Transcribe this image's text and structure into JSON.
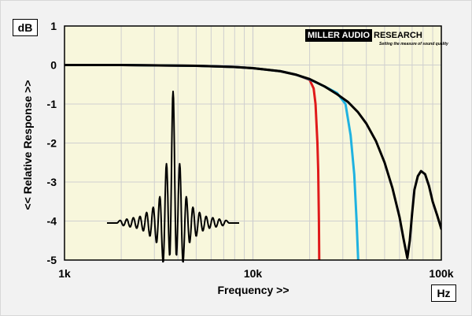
{
  "chart_data": {
    "type": "line",
    "title": "",
    "y_unit": "dB",
    "x_unit": "Hz",
    "xlabel": "Frequency >>",
    "ylabel": "<< Relative Response >>",
    "x_scale": "log",
    "xlim": [
      1000,
      100000
    ],
    "ylim": [
      -5,
      1
    ],
    "grid": true,
    "x_tick_labels": [
      "1k",
      "10k",
      "100k"
    ],
    "y_tick_labels": [
      "1",
      "0",
      "-1",
      "-2",
      "-3",
      "-4",
      "-5"
    ],
    "series": [
      {
        "color": "#e01a1a",
        "x": [
          1000,
          2000,
          5000,
          8000,
          10000,
          14000,
          17000,
          20000,
          21000,
          21500,
          22000,
          22200,
          22400,
          22500
        ],
        "y": [
          0,
          0,
          -0.02,
          -0.05,
          -0.08,
          -0.16,
          -0.25,
          -0.38,
          -0.6,
          -1.0,
          -2.0,
          -2.7,
          -4.0,
          -5.0
        ]
      },
      {
        "color": "#1fb2e0",
        "x": [
          1000,
          2000,
          5000,
          8000,
          10000,
          14000,
          17000,
          20000,
          24000,
          28000,
          31000,
          33000,
          34500,
          35500,
          36200
        ],
        "y": [
          0,
          0,
          -0.02,
          -0.05,
          -0.08,
          -0.16,
          -0.25,
          -0.37,
          -0.55,
          -0.72,
          -1.0,
          -1.8,
          -2.8,
          -4.0,
          -5.0
        ]
      },
      {
        "color": "#000000",
        "x": [
          1000,
          2000,
          5000,
          8000,
          10000,
          14000,
          17000,
          20000,
          24000,
          28000,
          32000,
          36000,
          40000,
          45000,
          50000,
          55000,
          60000,
          63000,
          66000,
          68000,
          70000,
          72000,
          75000,
          78000,
          82000,
          86000,
          90000,
          95000,
          100000
        ],
        "y": [
          0,
          0,
          -0.02,
          -0.05,
          -0.08,
          -0.16,
          -0.25,
          -0.36,
          -0.55,
          -0.75,
          -0.95,
          -1.2,
          -1.5,
          -1.95,
          -2.5,
          -3.15,
          -3.9,
          -4.45,
          -4.95,
          -4.5,
          -3.8,
          -3.2,
          -2.85,
          -2.72,
          -2.8,
          -3.1,
          -3.5,
          -3.85,
          -4.2
        ]
      }
    ],
    "impulse_inset": {
      "color": "#000000",
      "samples": [
        0,
        0,
        0,
        0,
        0.02,
        -0.02,
        0.03,
        -0.03,
        0.04,
        -0.04,
        0.05,
        -0.06,
        0.08,
        -0.1,
        0.12,
        -0.15,
        0.2,
        -0.3,
        0.45,
        -0.25,
        1.0,
        -0.25,
        0.45,
        -0.3,
        0.2,
        -0.15,
        0.12,
        -0.1,
        0.08,
        -0.06,
        0.05,
        -0.04,
        0.04,
        -0.03,
        0.03,
        -0.02,
        0.02,
        0,
        0,
        0,
        0
      ]
    }
  },
  "logo": {
    "left_text": "MILLER AUDIO",
    "right_text": "RESEARCH",
    "tagline": "Setting the measure of sound quality"
  },
  "colors": {
    "plot_background": "#f8f7dc",
    "grid": "#cfcfcf"
  }
}
